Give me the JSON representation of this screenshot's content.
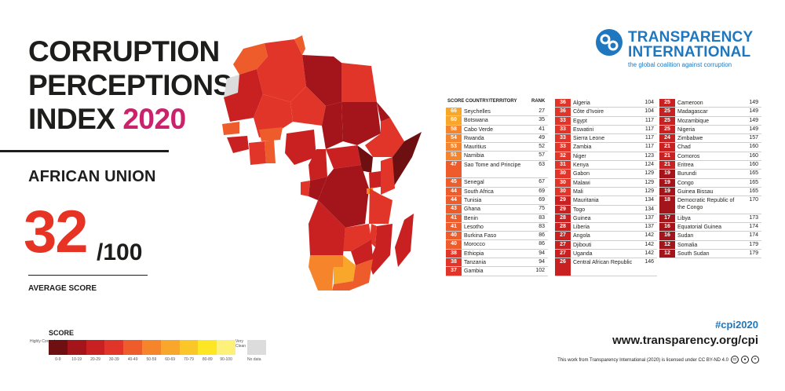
{
  "title": {
    "line1": "CORRUPTION",
    "line2": "PERCEPTIONS",
    "line3": "INDEX",
    "year": "2020"
  },
  "region": "AFRICAN UNION",
  "average": {
    "score": "32",
    "denominator": "/100",
    "label": "AVERAGE SCORE"
  },
  "legend": {
    "title": "SCORE",
    "low_label": "Highly Corrupt",
    "high_label": "Very Clean",
    "nodata_label": "No data",
    "bins": [
      "0-9",
      "10-19",
      "20-29",
      "30-39",
      "40-49",
      "50-59",
      "60-69",
      "70-79",
      "80-89",
      "90-100"
    ],
    "colors": [
      "#6e0f12",
      "#a3151a",
      "#c92121",
      "#e2352a",
      "#ee5c2c",
      "#f5842b",
      "#f8a72a",
      "#fbc728",
      "#fde725",
      "#fdf17a"
    ],
    "nodata_color": "#dcdcdc"
  },
  "table_headers": {
    "score": "SCORE",
    "country": "COUNTRY/TERRITORY",
    "rank": "RANK"
  },
  "org": {
    "name_line1": "TRANSPARENCY",
    "name_line2": "INTERNATIONAL",
    "tagline": "the global coalition against corruption"
  },
  "footer": {
    "hashtag": "#cpi2020",
    "url": "www.transparency.org/cpi",
    "license": "This work from Transparency International (2020) is licensed under CC BY-ND 4.0"
  },
  "chart_data": {
    "type": "table",
    "title": "CORRUPTION PERCEPTIONS INDEX 2020",
    "subtitle": "AFRICAN UNION",
    "average_score": 32,
    "columns": [
      "SCORE",
      "COUNTRY/TERRITORY",
      "RANK"
    ],
    "rows": [
      {
        "score": 66,
        "country": "Seychelles",
        "rank": 27
      },
      {
        "score": 60,
        "country": "Botswana",
        "rank": 35
      },
      {
        "score": 58,
        "country": "Cabo Verde",
        "rank": 41
      },
      {
        "score": 54,
        "country": "Rwanda",
        "rank": 49
      },
      {
        "score": 53,
        "country": "Mauritius",
        "rank": 52
      },
      {
        "score": 51,
        "country": "Namibia",
        "rank": 57
      },
      {
        "score": 47,
        "country": "Sao Tome and Principe",
        "rank": 63
      },
      {
        "score": 45,
        "country": "Senegal",
        "rank": 67
      },
      {
        "score": 44,
        "country": "South Africa",
        "rank": 69
      },
      {
        "score": 44,
        "country": "Tunisia",
        "rank": 69
      },
      {
        "score": 43,
        "country": "Ghana",
        "rank": 75
      },
      {
        "score": 41,
        "country": "Benin",
        "rank": 83
      },
      {
        "score": 41,
        "country": "Lesotho",
        "rank": 83
      },
      {
        "score": 40,
        "country": "Burkina Faso",
        "rank": 86
      },
      {
        "score": 40,
        "country": "Morocco",
        "rank": 86
      },
      {
        "score": 38,
        "country": "Ethiopia",
        "rank": 94
      },
      {
        "score": 38,
        "country": "Tanzania",
        "rank": 94
      },
      {
        "score": 37,
        "country": "Gambia",
        "rank": 102
      },
      {
        "score": 36,
        "country": "Algeria",
        "rank": 104
      },
      {
        "score": 36,
        "country": "Côte d'Ivoire",
        "rank": 104
      },
      {
        "score": 33,
        "country": "Egypt",
        "rank": 117
      },
      {
        "score": 33,
        "country": "Eswatini",
        "rank": 117
      },
      {
        "score": 33,
        "country": "Sierra Leone",
        "rank": 117
      },
      {
        "score": 33,
        "country": "Zambia",
        "rank": 117
      },
      {
        "score": 32,
        "country": "Niger",
        "rank": 123
      },
      {
        "score": 31,
        "country": "Kenya",
        "rank": 124
      },
      {
        "score": 30,
        "country": "Gabon",
        "rank": 129
      },
      {
        "score": 30,
        "country": "Malawi",
        "rank": 129
      },
      {
        "score": 30,
        "country": "Mali",
        "rank": 129
      },
      {
        "score": 29,
        "country": "Mauritania",
        "rank": 134
      },
      {
        "score": 29,
        "country": "Togo",
        "rank": 134
      },
      {
        "score": 28,
        "country": "Guinea",
        "rank": 137
      },
      {
        "score": 28,
        "country": "Liberia",
        "rank": 137
      },
      {
        "score": 27,
        "country": "Angola",
        "rank": 142
      },
      {
        "score": 27,
        "country": "Djibouti",
        "rank": 142
      },
      {
        "score": 27,
        "country": "Uganda",
        "rank": 142
      },
      {
        "score": 26,
        "country": "Central African Republic",
        "rank": 146
      },
      {
        "score": 25,
        "country": "Cameroon",
        "rank": 149
      },
      {
        "score": 25,
        "country": "Madagascar",
        "rank": 149
      },
      {
        "score": 25,
        "country": "Mozambique",
        "rank": 149
      },
      {
        "score": 25,
        "country": "Nigeria",
        "rank": 149
      },
      {
        "score": 24,
        "country": "Zimbabwe",
        "rank": 157
      },
      {
        "score": 21,
        "country": "Chad",
        "rank": 160
      },
      {
        "score": 21,
        "country": "Comoros",
        "rank": 160
      },
      {
        "score": 21,
        "country": "Eritrea",
        "rank": 160
      },
      {
        "score": 19,
        "country": "Burundi",
        "rank": 165
      },
      {
        "score": 19,
        "country": "Congo",
        "rank": 165
      },
      {
        "score": 19,
        "country": "Guinea Bissau",
        "rank": 165
      },
      {
        "score": 18,
        "country": "Democratic Republic of the Congo",
        "rank": 170
      },
      {
        "score": 17,
        "country": "Libya",
        "rank": 173
      },
      {
        "score": 16,
        "country": "Equatorial Guinea",
        "rank": 174
      },
      {
        "score": 16,
        "country": "Sudan",
        "rank": 174
      },
      {
        "score": 12,
        "country": "Somalia",
        "rank": 179
      },
      {
        "score": 12,
        "country": "South Sudan",
        "rank": 179
      }
    ]
  }
}
